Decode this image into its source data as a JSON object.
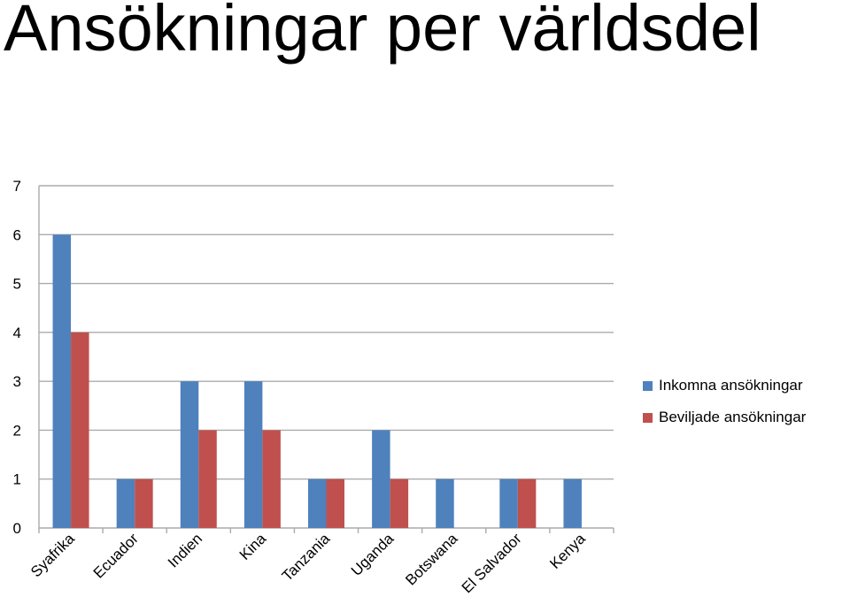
{
  "chart_data": {
    "type": "bar",
    "title": "Ansökningar per världsdel",
    "categories": [
      "Syafrika",
      "Ecuador",
      "Indien",
      "Kina",
      "Tanzania",
      "Uganda",
      "Botswana",
      "El Salvador",
      "Kenya"
    ],
    "series": [
      {
        "name": "Inkomna ansökningar",
        "color": "#4F81BD",
        "values": [
          6,
          1,
          3,
          3,
          1,
          2,
          1,
          1,
          1
        ]
      },
      {
        "name": "Beviljade ansökningar",
        "color": "#C0504D",
        "values": [
          4,
          1,
          2,
          2,
          1,
          1,
          0,
          1,
          0
        ]
      }
    ],
    "yticks": [
      "0",
      "1",
      "2",
      "3",
      "4",
      "5",
      "6",
      "7"
    ],
    "ylim": [
      0,
      7
    ],
    "grid": true,
    "legend_position": "right"
  }
}
